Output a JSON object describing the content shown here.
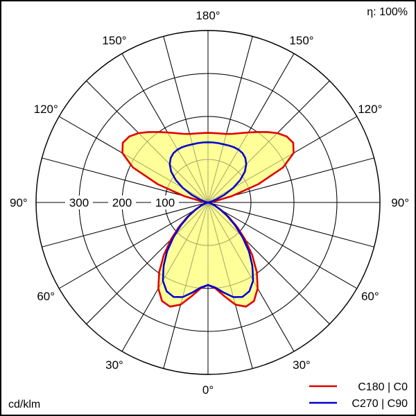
{
  "efficiency_label": "η: 100%",
  "unit_label": "cd/klm",
  "legend": [
    {
      "label": "C180 | C0",
      "color": "#e00000"
    },
    {
      "label": "C270 | C90",
      "color": "#0000d0"
    }
  ],
  "colors": {
    "fill": "#ffff99",
    "grid": "#000000"
  },
  "chart_data": {
    "type": "polar",
    "angle_labels": [
      {
        "text": "180°"
      },
      {
        "text": "150°"
      },
      {
        "text": "150°"
      },
      {
        "text": "120°"
      },
      {
        "text": "120°"
      },
      {
        "text": "90°"
      },
      {
        "text": "90°"
      },
      {
        "text": "60°"
      },
      {
        "text": "60°"
      },
      {
        "text": "30°"
      },
      {
        "text": "30°"
      },
      {
        "text": "0°"
      }
    ],
    "radial_labels": [
      "100",
      "200",
      "300"
    ],
    "radial_max": 400,
    "radial_rings": [
      100,
      200,
      300,
      400
    ],
    "angle_step_deg": 15,
    "series": [
      {
        "name": "C180 | C0",
        "color": "#e00000",
        "fill": true,
        "points": [
          [
            0,
            192
          ],
          [
            5,
            201
          ],
          [
            10,
            222
          ],
          [
            15,
            246
          ],
          [
            20,
            258
          ],
          [
            25,
            253
          ],
          [
            30,
            231
          ],
          [
            35,
            198
          ],
          [
            40,
            160
          ],
          [
            45,
            122
          ],
          [
            50,
            88
          ],
          [
            55,
            58
          ],
          [
            60,
            35
          ],
          [
            65,
            18
          ],
          [
            70,
            8
          ],
          [
            75,
            3
          ],
          [
            80,
            1
          ],
          [
            85,
            0
          ],
          [
            90,
            0
          ],
          [
            95,
            2
          ],
          [
            100,
            16
          ],
          [
            105,
            58
          ],
          [
            110,
            125
          ],
          [
            115,
            193
          ],
          [
            120,
            230
          ],
          [
            125,
            242
          ],
          [
            130,
            239
          ],
          [
            135,
            228
          ],
          [
            140,
            214
          ],
          [
            145,
            200
          ],
          [
            150,
            188
          ],
          [
            155,
            178
          ],
          [
            160,
            170
          ],
          [
            165,
            165
          ],
          [
            170,
            163
          ],
          [
            175,
            162
          ],
          [
            180,
            162
          ]
        ]
      },
      {
        "name": "C270 | C90",
        "color": "#0000d0",
        "fill": false,
        "points": [
          [
            0,
            192
          ],
          [
            5,
            199
          ],
          [
            10,
            213
          ],
          [
            15,
            228
          ],
          [
            20,
            234
          ],
          [
            25,
            228
          ],
          [
            30,
            210
          ],
          [
            35,
            180
          ],
          [
            40,
            148
          ],
          [
            45,
            113
          ],
          [
            50,
            82
          ],
          [
            55,
            55
          ],
          [
            60,
            33
          ],
          [
            65,
            18
          ],
          [
            70,
            8
          ],
          [
            75,
            3
          ],
          [
            80,
            1
          ],
          [
            85,
            0
          ],
          [
            90,
            0
          ],
          [
            95,
            0
          ],
          [
            100,
            2
          ],
          [
            105,
            8
          ],
          [
            110,
            20
          ],
          [
            115,
            42
          ],
          [
            120,
            68
          ],
          [
            125,
            92
          ],
          [
            130,
            112
          ],
          [
            135,
            126
          ],
          [
            140,
            135
          ],
          [
            145,
            140
          ],
          [
            150,
            142
          ],
          [
            155,
            142
          ],
          [
            160,
            141
          ],
          [
            165,
            140
          ],
          [
            170,
            140
          ],
          [
            175,
            140
          ],
          [
            180,
            140
          ]
        ]
      }
    ]
  }
}
